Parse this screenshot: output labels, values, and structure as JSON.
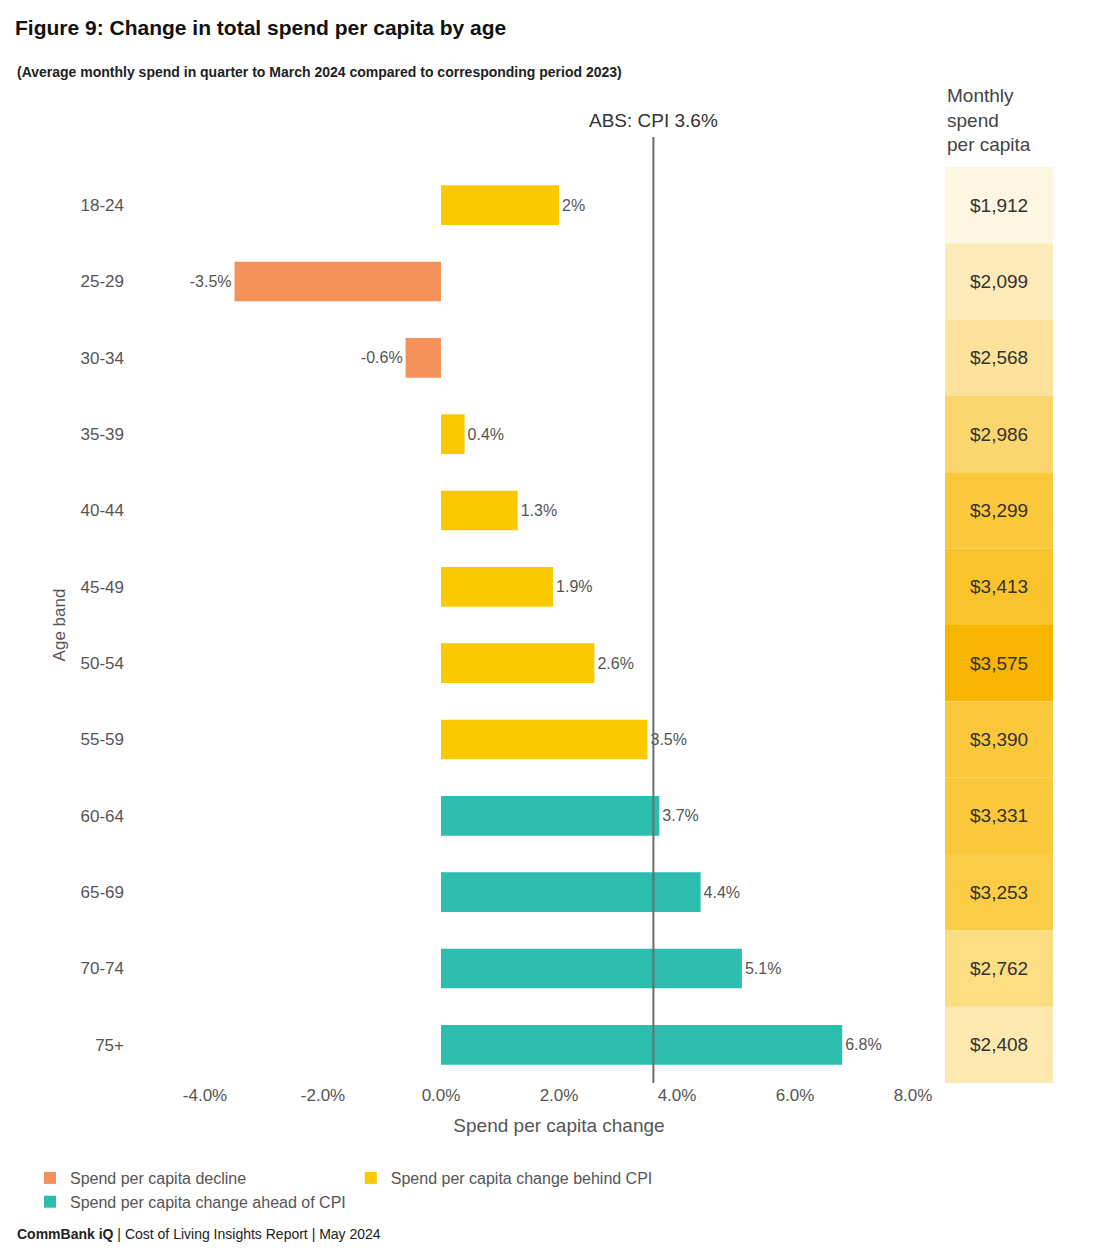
{
  "chart_data": {
    "type": "bar",
    "orientation": "horizontal",
    "title": "Figure 9: Change in total spend per capita by age",
    "subtitle": "(Average monthly spend in quarter to March 2024 compared to corresponding period 2023)",
    "x_label": "Spend per capita change",
    "y_label": "Age band",
    "categories": [
      "18-24",
      "25-29",
      "30-34",
      "35-39",
      "40-44",
      "45-49",
      "50-54",
      "55-59",
      "60-64",
      "65-69",
      "70-74",
      "75+"
    ],
    "series": [
      {
        "name": "Spend per capita decline",
        "color": "#f4925a",
        "values": [
          null,
          -3.5,
          -0.6,
          null,
          null,
          null,
          null,
          null,
          null,
          null,
          null,
          null
        ]
      },
      {
        "name": "Spend per capita change behind CPI",
        "color": "#fcc900",
        "values": [
          2,
          null,
          null,
          0.4,
          1.3,
          1.9,
          2.6,
          3.5,
          null,
          null,
          null,
          null
        ]
      },
      {
        "name": "Spend per capita change ahead of CPI",
        "color": "#2bbdae",
        "values": [
          null,
          null,
          null,
          null,
          null,
          null,
          null,
          null,
          3.7,
          4.4,
          5.1,
          6.8
        ]
      }
    ],
    "value_labels": [
      "2%",
      "-3.5%",
      "-0.6%",
      "0.4%",
      "1.3%",
      "1.9%",
      "2.6%",
      "3.5%",
      "3.7%",
      "4.4%",
      "5.1%",
      "6.8%"
    ],
    "data_labels": true,
    "xlim": [
      -4,
      8
    ],
    "xticks": [
      {
        "value": -4,
        "label": "-4.0%"
      },
      {
        "value": -2,
        "label": "-2.0%"
      },
      {
        "value": 0,
        "label": "0.0%"
      },
      {
        "value": 2,
        "label": "2.0%"
      },
      {
        "value": 4,
        "label": "4.0%"
      },
      {
        "value": 6,
        "label": "6.0%"
      },
      {
        "value": 8,
        "label": "8.0%"
      }
    ],
    "grid": false,
    "legend": "bottom",
    "reference_line": {
      "value": 3.6,
      "label": "ABS: CPI 3.6%"
    },
    "table": {
      "title_lines": [
        "Monthly",
        "spend",
        "per capita"
      ],
      "values": [
        1912,
        2099,
        2568,
        2986,
        3299,
        3413,
        3575,
        3390,
        3331,
        3253,
        2762,
        2408
      ],
      "value_labels": [
        "$1,912",
        "$2,099",
        "$2,568",
        "$2,986",
        "$3,299",
        "$3,413",
        "$3,575",
        "$3,390",
        "$3,331",
        "$3,253",
        "$2,762",
        "$2,408"
      ],
      "colors": [
        "#fdf6e0",
        "#fcebb8",
        "#fce29a",
        "#fbd66e",
        "#fbc83c",
        "#fac32c",
        "#f7b500",
        "#fbc83c",
        "#fbc83c",
        "#fbcc46",
        "#fcdd82",
        "#fde9b0"
      ]
    },
    "footer": "CommBank iQ | Cost of Living Insights Report | May 2024"
  }
}
